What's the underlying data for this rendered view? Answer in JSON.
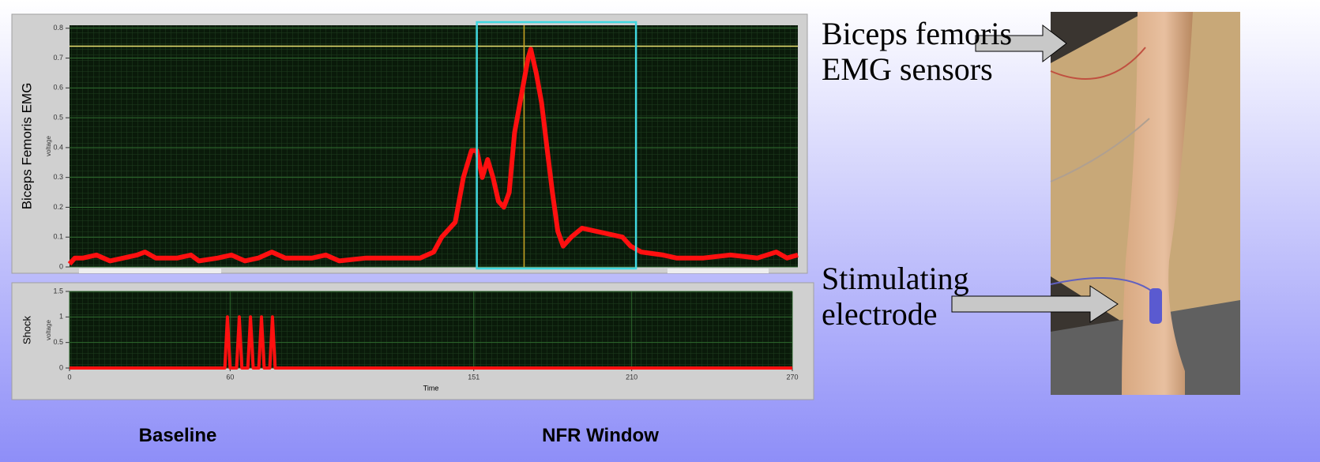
{
  "chart_data": [
    {
      "type": "line",
      "ylabel": "Biceps Femoris EMG",
      "yunit": "voltage",
      "xlim": [
        0,
        270
      ],
      "ylim": [
        0,
        0.81
      ],
      "yticks": [
        0,
        0.1,
        0.2,
        0.3,
        0.4,
        0.5,
        0.6,
        0.7,
        0.8
      ],
      "grid": true,
      "threshold": 0.74,
      "threshold_color": "#e8e070",
      "cursor_x": 168.5,
      "cursor_color": "#c8a020",
      "window": [
        151,
        210
      ],
      "window_color": "#40d8e0",
      "series": [
        {
          "color": "#ff1010",
          "x": [
            0,
            2,
            5,
            10,
            15,
            20,
            25,
            28,
            32,
            40,
            45,
            48,
            55,
            60,
            65,
            70,
            75,
            80,
            90,
            95,
            100,
            110,
            120,
            130,
            135,
            138,
            143,
            146,
            149,
            151,
            153,
            155,
            157,
            159,
            161,
            163,
            165,
            168,
            170,
            171,
            173,
            175,
            177,
            179,
            181,
            183,
            186,
            190,
            195,
            200,
            205,
            208,
            212,
            220,
            225,
            235,
            245,
            255,
            262,
            266,
            270
          ],
          "values": [
            0.01,
            0.03,
            0.03,
            0.04,
            0.02,
            0.03,
            0.04,
            0.05,
            0.03,
            0.03,
            0.04,
            0.02,
            0.03,
            0.04,
            0.02,
            0.03,
            0.05,
            0.03,
            0.03,
            0.04,
            0.02,
            0.03,
            0.03,
            0.03,
            0.05,
            0.1,
            0.15,
            0.3,
            0.39,
            0.39,
            0.3,
            0.36,
            0.3,
            0.22,
            0.2,
            0.25,
            0.45,
            0.6,
            0.7,
            0.73,
            0.65,
            0.55,
            0.4,
            0.25,
            0.12,
            0.07,
            0.1,
            0.13,
            0.12,
            0.11,
            0.1,
            0.07,
            0.05,
            0.04,
            0.03,
            0.03,
            0.04,
            0.03,
            0.05,
            0.03,
            0.04
          ]
        }
      ]
    },
    {
      "type": "line",
      "ylabel": "Shock",
      "yunit": "voltage",
      "xlabel": "Time",
      "xlim": [
        0,
        270
      ],
      "ylim": [
        0,
        1.5
      ],
      "xticks": [
        0,
        60,
        151,
        210,
        270
      ],
      "yticks": [
        0,
        0.5,
        1,
        1.5
      ],
      "grid": true,
      "series": [
        {
          "color": "#ff1010",
          "x": [
            0,
            58,
            59,
            60,
            62.4,
            63.4,
            64.4,
            66.6,
            67.6,
            68.6,
            70.7,
            71.7,
            72.7,
            74.8,
            75.8,
            76.8,
            270
          ],
          "values": [
            0,
            0,
            1,
            0,
            0,
            1,
            0,
            0,
            1,
            0,
            0,
            1,
            0,
            0,
            1,
            0,
            0
          ]
        }
      ]
    }
  ],
  "annotations": [
    "Biceps femoris EMG sensors",
    "Stimulating electrode"
  ],
  "captions": [
    "Baseline",
    "NFR Window"
  ]
}
